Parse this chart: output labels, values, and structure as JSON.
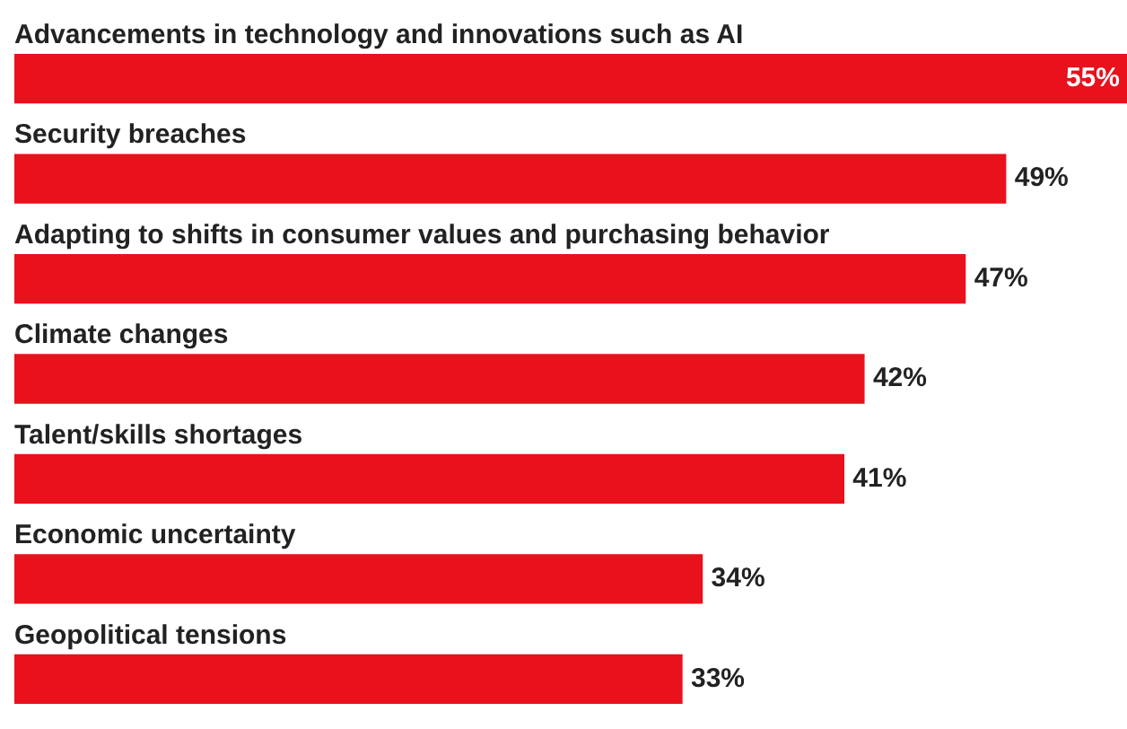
{
  "chart_data": {
    "type": "bar",
    "orientation": "horizontal",
    "categories": [
      "Advancements in technology and innovations such as AI",
      "Security breaches",
      "Adapting to shifts in consumer values and purchasing behavior",
      "Climate changes",
      "Talent/skills shortages",
      "Economic uncertainty",
      "Geopolitical tensions"
    ],
    "values": [
      55,
      49,
      47,
      42,
      41,
      34,
      33
    ],
    "value_labels": [
      "55%",
      "49%",
      "47%",
      "42%",
      "41%",
      "34%",
      "33%"
    ],
    "color": "#e8111c"
  }
}
